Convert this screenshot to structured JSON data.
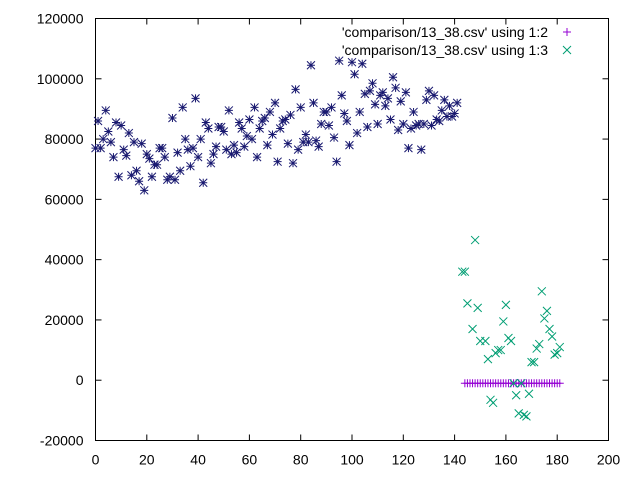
{
  "chart_data": {
    "type": "scatter",
    "title": "",
    "xlabel": "",
    "ylabel": "",
    "xlim": [
      0,
      200
    ],
    "ylim": [
      -20000,
      120000
    ],
    "x_ticks": [
      0,
      20,
      40,
      60,
      80,
      100,
      120,
      140,
      160,
      180,
      200
    ],
    "y_ticks": [
      -20000,
      0,
      20000,
      40000,
      60000,
      80000,
      100000,
      120000
    ],
    "x_tick_labels": [
      "0",
      "20",
      "40",
      "60",
      "80",
      "100",
      "120",
      "140",
      "160",
      "180",
      "200"
    ],
    "y_tick_labels": [
      "-20000",
      "0",
      "20000",
      "40000",
      "60000",
      "80000",
      "100000",
      "120000"
    ],
    "grid": false,
    "legend_position": "top-right",
    "series": [
      {
        "name": "'comparison/13_38.csv' using 1:2",
        "marker": "plus",
        "color": "#9400d3",
        "x_start": 144,
        "x_end": 181,
        "y": -1000
      },
      {
        "name": "'comparison/13_38.csv' using 1:3",
        "marker": "cross",
        "color": "#009e73",
        "points": [
          [
            143,
            36000
          ],
          [
            144,
            36000
          ],
          [
            145,
            25500
          ],
          [
            147,
            17000
          ],
          [
            148,
            46500
          ],
          [
            149,
            24000
          ],
          [
            150,
            13000
          ],
          [
            152,
            13000
          ],
          [
            153,
            7000
          ],
          [
            154,
            -6500
          ],
          [
            155,
            -7500
          ],
          [
            156,
            9000
          ],
          [
            157,
            10000
          ],
          [
            158,
            10000
          ],
          [
            159,
            19500
          ],
          [
            160,
            25000
          ],
          [
            161,
            14000
          ],
          [
            162,
            13000
          ],
          [
            163,
            -1000
          ],
          [
            164,
            -5000
          ],
          [
            165,
            -11000
          ],
          [
            166,
            -1000
          ],
          [
            167,
            -11500
          ],
          [
            168,
            -12000
          ],
          [
            169,
            -4500
          ],
          [
            170,
            6000
          ],
          [
            171,
            6000
          ],
          [
            172,
            10500
          ],
          [
            173,
            12000
          ],
          [
            174,
            29500
          ],
          [
            175,
            20500
          ],
          [
            176,
            23000
          ],
          [
            177,
            17000
          ],
          [
            178,
            14500
          ],
          [
            179,
            8500
          ],
          [
            180,
            9000
          ],
          [
            181,
            11000
          ]
        ]
      },
      {
        "name": "",
        "marker": "star",
        "color": "#191970",
        "points": [
          [
            0,
            77000
          ],
          [
            1,
            86000
          ],
          [
            2,
            77000
          ],
          [
            3,
            80000
          ],
          [
            4,
            89500
          ],
          [
            5,
            82500
          ],
          [
            6,
            79000
          ],
          [
            7,
            74000
          ],
          [
            8,
            85500
          ],
          [
            9,
            67500
          ],
          [
            10,
            84500
          ],
          [
            11,
            76500
          ],
          [
            12,
            74500
          ],
          [
            13,
            82000
          ],
          [
            14,
            68000
          ],
          [
            15,
            79000
          ],
          [
            16,
            69500
          ],
          [
            17,
            66000
          ],
          [
            18,
            78500
          ],
          [
            19,
            63000
          ],
          [
            20,
            75000
          ],
          [
            21,
            73500
          ],
          [
            22,
            67500
          ],
          [
            23,
            71500
          ],
          [
            24,
            71500
          ],
          [
            25,
            77000
          ],
          [
            26,
            77000
          ],
          [
            27,
            74000
          ],
          [
            28,
            66500
          ],
          [
            29,
            67500
          ],
          [
            30,
            87000
          ],
          [
            31,
            66500
          ],
          [
            32,
            75500
          ],
          [
            33,
            69500
          ],
          [
            34,
            90500
          ],
          [
            35,
            80000
          ],
          [
            36,
            76500
          ],
          [
            37,
            71000
          ],
          [
            38,
            77000
          ],
          [
            39,
            93500
          ],
          [
            40,
            74000
          ],
          [
            41,
            80000
          ],
          [
            42,
            65500
          ],
          [
            43,
            85500
          ],
          [
            44,
            83500
          ],
          [
            45,
            72000
          ],
          [
            46,
            75000
          ],
          [
            47,
            77500
          ],
          [
            48,
            84000
          ],
          [
            49,
            84000
          ],
          [
            50,
            82500
          ],
          [
            51,
            76500
          ],
          [
            52,
            89500
          ],
          [
            53,
            75000
          ],
          [
            54,
            78000
          ],
          [
            55,
            75500
          ],
          [
            56,
            85500
          ],
          [
            57,
            83500
          ],
          [
            58,
            77500
          ],
          [
            59,
            81000
          ],
          [
            60,
            86500
          ],
          [
            61,
            80000
          ],
          [
            62,
            90500
          ],
          [
            63,
            74000
          ],
          [
            64,
            83500
          ],
          [
            65,
            86000
          ],
          [
            66,
            87000
          ],
          [
            67,
            78000
          ],
          [
            68,
            89000
          ],
          [
            69,
            81500
          ],
          [
            70,
            92000
          ],
          [
            71,
            72500
          ],
          [
            72,
            83500
          ],
          [
            73,
            86000
          ],
          [
            74,
            86500
          ],
          [
            75,
            78500
          ],
          [
            76,
            88000
          ],
          [
            77,
            72000
          ],
          [
            78,
            96500
          ],
          [
            79,
            76500
          ],
          [
            80,
            90500
          ],
          [
            81,
            79000
          ],
          [
            82,
            81500
          ],
          [
            83,
            79000
          ],
          [
            84,
            104500
          ],
          [
            85,
            92000
          ],
          [
            86,
            79500
          ],
          [
            87,
            77500
          ],
          [
            88,
            85000
          ],
          [
            89,
            89000
          ],
          [
            90,
            89000
          ],
          [
            91,
            84500
          ],
          [
            92,
            90500
          ],
          [
            93,
            80500
          ],
          [
            94,
            72500
          ],
          [
            95,
            106000
          ],
          [
            96,
            94500
          ],
          [
            97,
            88500
          ],
          [
            98,
            86000
          ],
          [
            99,
            78000
          ],
          [
            100,
            105500
          ],
          [
            101,
            101500
          ],
          [
            102,
            82000
          ],
          [
            103,
            89000
          ],
          [
            104,
            105000
          ],
          [
            105,
            95000
          ],
          [
            106,
            84000
          ],
          [
            107,
            96000
          ],
          [
            108,
            98500
          ],
          [
            109,
            91500
          ],
          [
            110,
            85000
          ],
          [
            111,
            94500
          ],
          [
            112,
            95500
          ],
          [
            113,
            91000
          ],
          [
            114,
            93500
          ],
          [
            115,
            86500
          ],
          [
            116,
            100500
          ],
          [
            117,
            97000
          ],
          [
            118,
            83000
          ],
          [
            119,
            92500
          ],
          [
            120,
            85000
          ],
          [
            121,
            95500
          ],
          [
            122,
            77000
          ],
          [
            123,
            83500
          ],
          [
            124,
            89000
          ],
          [
            125,
            84500
          ],
          [
            126,
            85000
          ],
          [
            127,
            76500
          ],
          [
            128,
            85000
          ],
          [
            129,
            93000
          ],
          [
            130,
            96000
          ],
          [
            131,
            84500
          ],
          [
            132,
            94500
          ],
          [
            133,
            86500
          ],
          [
            134,
            86000
          ],
          [
            135,
            89500
          ],
          [
            136,
            93000
          ],
          [
            137,
            87500
          ],
          [
            138,
            91000
          ],
          [
            139,
            87500
          ],
          [
            140,
            88500
          ],
          [
            141,
            92000
          ]
        ]
      }
    ]
  }
}
